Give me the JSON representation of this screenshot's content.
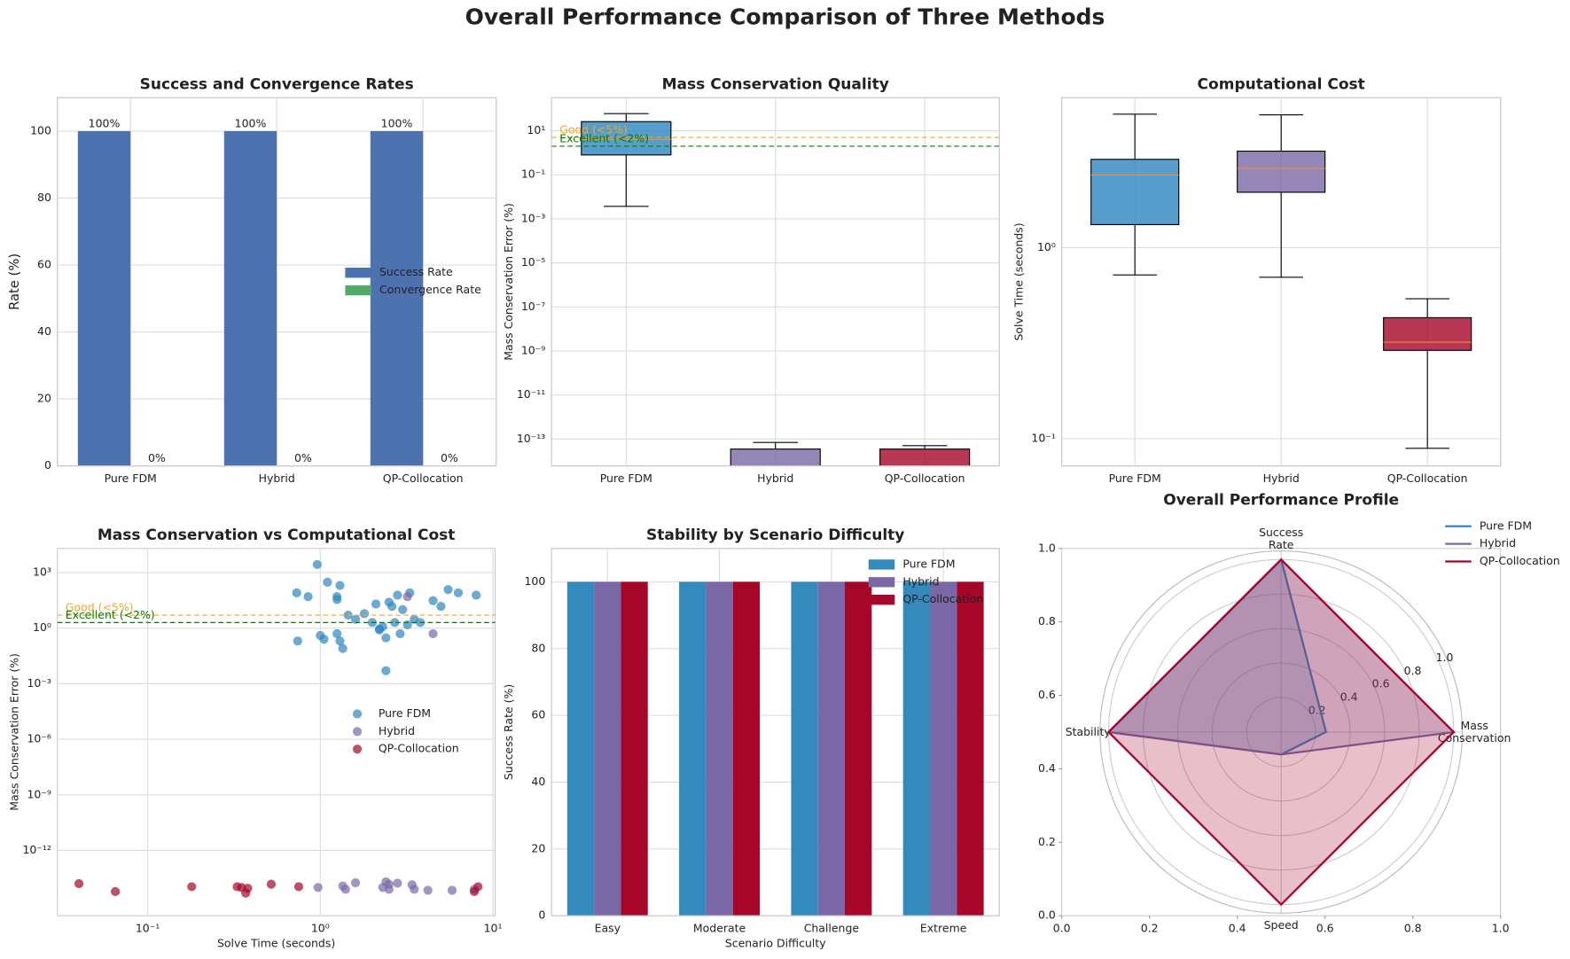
{
  "title": "Overall Performance Comparison of Three Methods",
  "chart_data": [
    {
      "type": "bar",
      "title": "Success and Convergence Rates",
      "ylabel": "Rate (%)",
      "categories": [
        "Pure FDM",
        "Hybrid",
        "QP-Collocation"
      ],
      "series": [
        {
          "name": "Success Rate",
          "color": "#4c72b0",
          "values": [
            100,
            100,
            100
          ],
          "value_labels": [
            "100%",
            "100%",
            "100%"
          ]
        },
        {
          "name": "Convergence Rate",
          "color": "#55a868",
          "values": [
            0,
            0,
            0
          ],
          "value_labels": [
            "0%",
            "0%",
            "0%"
          ]
        }
      ],
      "ylim": [
        0,
        110
      ],
      "yticks": [
        0,
        20,
        40,
        60,
        80,
        100
      ],
      "grid": true,
      "legend": "center right"
    },
    {
      "type": "box",
      "title": "Mass Conservation Quality",
      "ylabel": "Mass Conservation Error (%)",
      "yscale": "log",
      "categories": [
        "Pure FDM",
        "Hybrid",
        "QP-Collocation"
      ],
      "boxes": [
        {
          "color": "#2e86c1",
          "whislo": 0.0037,
          "q1": 0.8,
          "med": 4,
          "q3": 26,
          "whishi": 60
        },
        {
          "color": "#7a68a6",
          "whislo": 1e-15,
          "q1": 2e-15,
          "med": 4e-15,
          "q3": 3.5e-14,
          "whishi": 7e-14
        },
        {
          "color": "#a5052a",
          "whislo": 1e-15,
          "q1": 2e-15,
          "med": 4e-15,
          "q3": 3.5e-14,
          "whishi": 5e-14
        }
      ],
      "hlines": [
        {
          "value": 5,
          "label": "Good (<5%)",
          "color": "#f5a623"
        },
        {
          "value": 2,
          "label": "Excellent (<2%)",
          "color": "#008000"
        }
      ],
      "ylim": [
        6e-15,
        320
      ],
      "yticks": [
        {
          "value": 10,
          "label": "10¹"
        },
        {
          "value": 0.1,
          "label": "10⁻¹"
        },
        {
          "value": 0.001,
          "label": "10⁻³"
        },
        {
          "value": 1e-05,
          "label": "10⁻⁵"
        },
        {
          "value": 1e-07,
          "label": "10⁻⁷"
        },
        {
          "value": 1e-09,
          "label": "10⁻⁹"
        },
        {
          "value": 1e-11,
          "label": "10⁻¹¹"
        },
        {
          "value": 1e-13,
          "label": "10⁻¹³"
        }
      ],
      "grid": true
    },
    {
      "type": "box",
      "title": "Computational Cost",
      "ylabel": "Solve Time (seconds)",
      "yscale": "log",
      "categories": [
        "Pure FDM",
        "Hybrid",
        "QP-Collocation"
      ],
      "boxes": [
        {
          "color": "#2e86c1",
          "whislo": 0.72,
          "q1": 1.32,
          "med": 2.4,
          "q3": 2.9,
          "whishi": 5.0
        },
        {
          "color": "#7a68a6",
          "whislo": 0.7,
          "q1": 1.95,
          "med": 2.6,
          "q3": 3.2,
          "whishi": 4.96
        },
        {
          "color": "#a5052a",
          "whislo": 0.089,
          "q1": 0.29,
          "med": 0.32,
          "q3": 0.43,
          "whishi": 0.54
        }
      ],
      "ylim": [
        0.072,
        6.1
      ],
      "yticks": [
        {
          "value": 0.1,
          "label": "10⁻¹"
        },
        {
          "value": 1,
          "label": "10⁰"
        }
      ],
      "grid": true
    },
    {
      "type": "scatter",
      "title": "Mass Conservation vs Computational Cost",
      "xlabel": "Solve Time (seconds)",
      "ylabel": "Mass Conservation Error (%)",
      "xscale": "log",
      "yscale": "log",
      "series": [
        {
          "name": "Pure FDM",
          "color": "#2e86c1",
          "x": [
            0.96,
            0.73,
            0.85,
            1.1,
            1.25,
            1.25,
            1.3,
            1.45,
            0.74,
            1.0,
            1.05,
            1.25,
            1.3,
            1.35,
            1.6,
            1.8,
            2.0,
            2.1,
            2.2,
            2.3,
            2.4,
            2.4,
            2.5,
            2.6,
            2.7,
            2.8,
            3.0,
            3.2,
            3.5,
            3.8,
            4.5,
            5.0,
            5.5,
            6.3,
            8.0,
            3.3,
            2.2,
            2.9
          ],
          "values": [
            2700,
            80,
            50,
            300,
            50,
            35,
            200,
            5,
            0.2,
            0.4,
            0.25,
            0.5,
            0.2,
            0.08,
            3,
            6,
            2,
            20,
            0.8,
            1.2,
            0.3,
            0.005,
            25,
            15,
            2,
            60,
            10,
            1.5,
            3,
            2,
            30,
            15,
            120,
            80,
            60,
            80,
            0.9,
            0.5
          ]
        },
        {
          "name": "Hybrid",
          "color": "#7a68a6",
          "x": [
            3.2,
            4.5,
            0.97,
            1.35,
            1.4,
            1.6,
            2.3,
            2.4,
            2.5,
            2.5,
            2.8,
            3.4,
            3.5,
            4.2,
            5.8,
            7.8
          ],
          "values": [
            50,
            0.5,
            1e-14,
            1.2e-14,
            8e-15,
            1.8e-14,
            1e-14,
            2e-14,
            1.5e-14,
            8e-15,
            1.7e-14,
            1.4e-14,
            8e-15,
            7e-15,
            7e-15,
            8e-15
          ]
        },
        {
          "name": "QP-Collocation",
          "color": "#a5052a",
          "x": [
            0.04,
            0.065,
            0.18,
            0.33,
            0.35,
            0.37,
            0.38,
            0.52,
            0.75,
            7.8,
            8.2
          ],
          "values": [
            1.6e-14,
            6e-15,
            1.1e-14,
            1.1e-14,
            1e-14,
            5e-15,
            9e-15,
            1.5e-14,
            1.1e-14,
            6e-15,
            1.1e-14
          ]
        }
      ],
      "hlines": [
        {
          "value": 5,
          "label": "Good (<5%)",
          "color": "#f5a623"
        },
        {
          "value": 2,
          "label": "Excellent (<2%)",
          "color": "#008000"
        }
      ],
      "xlim": [
        0.03,
        10.3
      ],
      "ylim": [
        3e-16,
        20000
      ],
      "xticks": [
        {
          "value": 0.1,
          "label": "10⁻¹"
        },
        {
          "value": 1,
          "label": "10⁰"
        },
        {
          "value": 10,
          "label": "10¹"
        }
      ],
      "yticks": [
        {
          "value": 1000,
          "label": "10³"
        },
        {
          "value": 1,
          "label": "10⁰"
        },
        {
          "value": 0.001,
          "label": "10⁻³"
        },
        {
          "value": 1e-06,
          "label": "10⁻⁶"
        },
        {
          "value": 1e-09,
          "label": "10⁻⁹"
        },
        {
          "value": 1e-12,
          "label": "10⁻¹²"
        }
      ],
      "grid": true,
      "legend": "center right"
    },
    {
      "type": "bar",
      "title": "Stability by Scenario Difficulty",
      "xlabel": "Scenario Difficulty",
      "ylabel": "Success Rate (%)",
      "categories": [
        "Easy",
        "Moderate",
        "Challenge",
        "Extreme"
      ],
      "series": [
        {
          "name": "Pure FDM",
          "color": "#348abd",
          "values": [
            100,
            100,
            100,
            100
          ]
        },
        {
          "name": "Hybrid",
          "color": "#7a68a6",
          "values": [
            100,
            100,
            100,
            100
          ]
        },
        {
          "name": "QP-Collocation",
          "color": "#a60628",
          "values": [
            100,
            100,
            100,
            100
          ]
        }
      ],
      "ylim": [
        0,
        110
      ],
      "yticks": [
        0,
        20,
        40,
        60,
        80,
        100
      ],
      "grid": true,
      "legend": "upper right"
    },
    {
      "type": "radar",
      "title": "Overall Performance Profile",
      "categories": [
        "Success\nRate",
        "Mass\nConservation",
        "Speed",
        "Stability"
      ],
      "series": [
        {
          "name": "Pure FDM",
          "color": "#2e86c1",
          "values": [
            1.0,
            0.26,
            0.13,
            1.0
          ]
        },
        {
          "name": "Hybrid",
          "color": "#7a68a6",
          "values": [
            1.0,
            1.0,
            0.13,
            1.0
          ]
        },
        {
          "name": "QP-Collocation",
          "color": "#a5052a",
          "values": [
            1.0,
            1.0,
            1.0,
            1.0
          ]
        }
      ],
      "rlim": [
        0,
        1.05
      ],
      "rticks": [
        0.2,
        0.4,
        0.6,
        0.8,
        {
          "value": 1,
          "label": "1.0"
        }
      ],
      "xlim": [
        0,
        1
      ],
      "ylim": [
        0,
        1
      ],
      "xticks": [
        {
          "value": 0,
          "label": "0.0"
        },
        0.2,
        0.4,
        0.6,
        0.8,
        {
          "value": 1,
          "label": "1.0"
        }
      ],
      "yticks": [
        {
          "value": 0,
          "label": "0.0"
        },
        0.2,
        0.4,
        0.6,
        0.8,
        {
          "value": 1,
          "label": "1.0"
        }
      ],
      "legend": "outside upper right"
    }
  ]
}
